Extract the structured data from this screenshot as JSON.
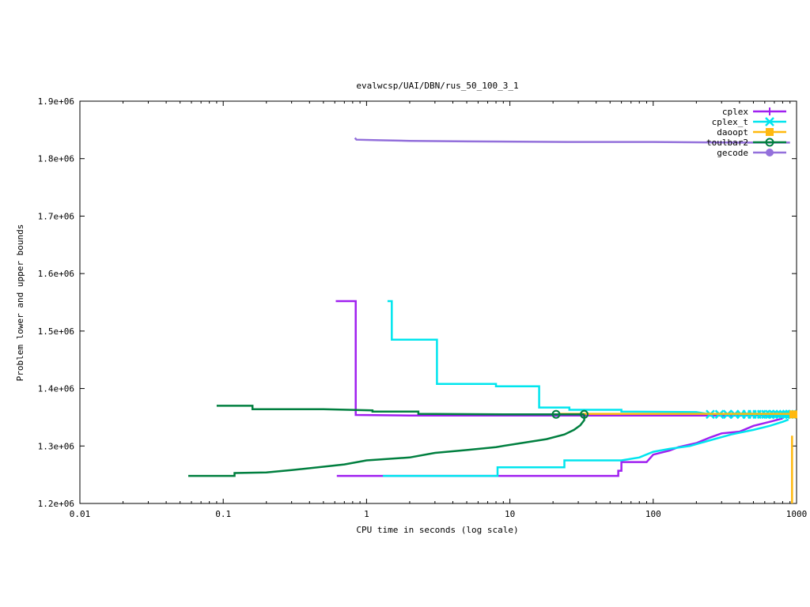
{
  "chart_data": {
    "type": "line",
    "title": "evalwcsp/UAI/DBN/rus_50_100_3_1",
    "xlabel": "CPU time in seconds (log scale)",
    "ylabel": "Problem lower and upper bounds",
    "xscale": "log",
    "xlim": [
      0.01,
      1000
    ],
    "ylim": [
      1200000,
      1900000
    ],
    "xticks": [
      0.01,
      0.1,
      1,
      10,
      100,
      1000
    ],
    "xtick_labels": [
      "0.01",
      "0.1",
      "1",
      "10",
      "100",
      "1000"
    ],
    "yticks": [
      1200000,
      1300000,
      1400000,
      1500000,
      1600000,
      1700000,
      1800000,
      1900000
    ],
    "ytick_labels": [
      "1.2e+06",
      "1.3e+06",
      "1.4e+06",
      "1.5e+06",
      "1.6e+06",
      "1.7e+06",
      "1.8e+06",
      "1.9e+06"
    ],
    "grid": false,
    "legend_position": "top-right",
    "series": [
      {
        "name": "cplex",
        "color": "#a020f0",
        "marker": "plus",
        "lines": [
          [
            [
              0.61,
              1552000
            ],
            [
              0.84,
              1552000
            ],
            [
              0.84,
              1354000
            ],
            [
              2.0,
              1353000
            ],
            [
              30,
              1353000
            ],
            [
              200,
              1353000
            ],
            [
              900,
              1353000
            ]
          ],
          [
            [
              0.62,
              1248000
            ],
            [
              57,
              1248000
            ],
            [
              57,
              1257000
            ],
            [
              60,
              1257000
            ],
            [
              60,
              1272000
            ],
            [
              90,
              1272000
            ],
            [
              100,
              1285000
            ],
            [
              130,
              1292000
            ],
            [
              150,
              1298000
            ],
            [
              200,
              1305000
            ],
            [
              250,
              1315000
            ],
            [
              300,
              1322000
            ],
            [
              400,
              1325000
            ],
            [
              500,
              1335000
            ],
            [
              650,
              1342000
            ],
            [
              800,
              1348000
            ]
          ]
        ]
      },
      {
        "name": "cplex_t",
        "color": "#00e5ee",
        "marker": "cross",
        "lines": [
          [
            [
              1.4,
              1552000
            ],
            [
              1.5,
              1552000
            ],
            [
              1.5,
              1485000
            ],
            [
              3.1,
              1485000
            ],
            [
              3.1,
              1408000
            ],
            [
              8.0,
              1408000
            ],
            [
              8.0,
              1404000
            ],
            [
              16,
              1404000
            ],
            [
              16,
              1367000
            ],
            [
              26,
              1367000
            ],
            [
              26,
              1363000
            ],
            [
              60,
              1363000
            ],
            [
              60,
              1360000
            ],
            [
              200,
              1359000
            ],
            [
              240,
              1356000
            ],
            [
              300,
              1355000
            ],
            [
              500,
              1355000
            ],
            [
              900,
              1355000
            ]
          ],
          [
            [
              1.3,
              1248000
            ],
            [
              8.2,
              1248000
            ],
            [
              8.2,
              1263000
            ],
            [
              24,
              1263000
            ],
            [
              24,
              1275000
            ],
            [
              60,
              1275000
            ],
            [
              80,
              1280000
            ],
            [
              100,
              1290000
            ],
            [
              130,
              1295000
            ],
            [
              180,
              1300000
            ],
            [
              250,
              1310000
            ],
            [
              350,
              1320000
            ],
            [
              500,
              1328000
            ],
            [
              650,
              1335000
            ],
            [
              800,
              1342000
            ],
            [
              880,
              1346000
            ]
          ]
        ],
        "marker_points": [
          [
            250,
            1355000
          ],
          [
            290,
            1355000
          ],
          [
            330,
            1355000
          ],
          [
            370,
            1355000
          ],
          [
            410,
            1355000
          ],
          [
            450,
            1355000
          ],
          [
            490,
            1355000
          ],
          [
            530,
            1355000
          ],
          [
            570,
            1355000
          ],
          [
            610,
            1355000
          ],
          [
            650,
            1355000
          ],
          [
            690,
            1355000
          ],
          [
            730,
            1355000
          ],
          [
            770,
            1355000
          ],
          [
            810,
            1355000
          ],
          [
            850,
            1355000
          ],
          [
            890,
            1355000
          ],
          [
            930,
            1355000
          ]
        ]
      },
      {
        "name": "daoopt",
        "color": "#ffb90f",
        "marker": "square",
        "lines": [
          [
            [
              22,
              1356000
            ],
            [
              100,
              1356000
            ],
            [
              400,
              1356000
            ],
            [
              800,
              1356000
            ],
            [
              1000,
              1356000
            ]
          ],
          [
            [
              930,
              1318000
            ],
            [
              930,
              1200000
            ]
          ]
        ],
        "marker_points": [
          [
            950,
            1355000
          ]
        ]
      },
      {
        "name": "toulbar2",
        "color": "#007f3f",
        "marker": "circle",
        "lines": [
          [
            [
              0.09,
              1370000
            ],
            [
              0.16,
              1370000
            ],
            [
              0.16,
              1364000
            ],
            [
              0.5,
              1364000
            ],
            [
              1.1,
              1362000
            ],
            [
              1.1,
              1360000
            ],
            [
              2.3,
              1360000
            ],
            [
              2.3,
              1356000
            ],
            [
              10,
              1355000
            ],
            [
              21,
              1355000
            ],
            [
              33,
              1355000
            ]
          ],
          [
            [
              0.057,
              1248000
            ],
            [
              0.12,
              1248000
            ],
            [
              0.12,
              1253000
            ],
            [
              0.2,
              1254000
            ],
            [
              0.3,
              1258000
            ],
            [
              0.5,
              1264000
            ],
            [
              0.7,
              1268000
            ],
            [
              1.0,
              1275000
            ],
            [
              2.0,
              1280000
            ],
            [
              3.0,
              1288000
            ],
            [
              5.0,
              1293000
            ],
            [
              8.0,
              1298000
            ],
            [
              12,
              1305000
            ],
            [
              18,
              1312000
            ],
            [
              24,
              1320000
            ],
            [
              28,
              1328000
            ],
            [
              31,
              1336000
            ],
            [
              33,
              1345000
            ],
            [
              33,
              1355000
            ]
          ]
        ],
        "marker_points": [
          [
            21,
            1355000
          ],
          [
            33,
            1355000
          ]
        ]
      },
      {
        "name": "gecode",
        "color": "#9370db",
        "marker": "dot",
        "lines": [
          [
            [
              0.83,
              1836000
            ],
            [
              0.85,
              1833000
            ],
            [
              1.2,
              1832000
            ],
            [
              2.0,
              1831000
            ],
            [
              5.0,
              1830000
            ],
            [
              25,
              1829000
            ],
            [
              100,
              1829000
            ],
            [
              400,
              1828000
            ],
            [
              900,
              1828000
            ]
          ]
        ],
        "marker_points": []
      }
    ]
  }
}
